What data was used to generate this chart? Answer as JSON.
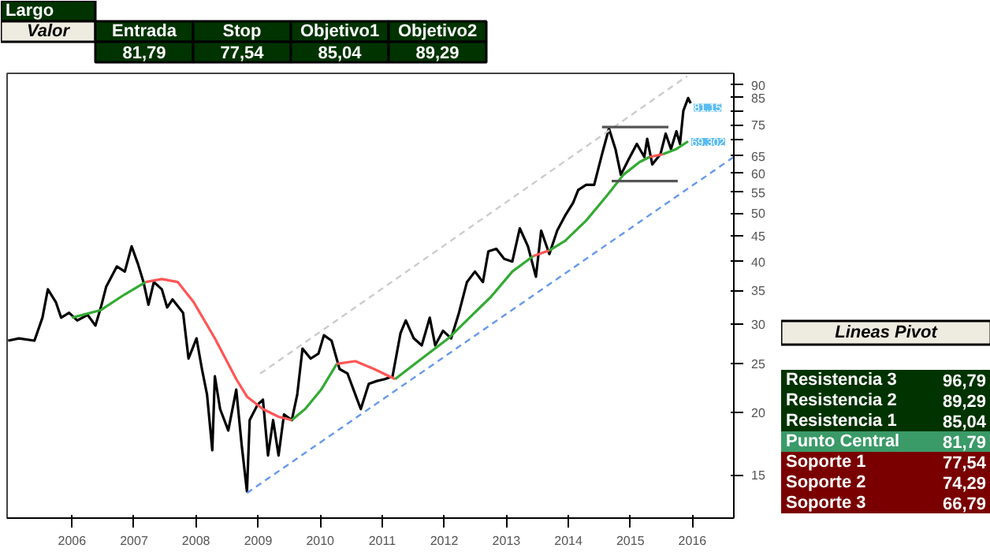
{
  "chart_data": [
    {
      "type": "other",
      "title": "Largo",
      "annotations": [
        "Valor"
      ],
      "categories": [
        "Entrada",
        "Stop",
        "Objetivo1",
        "Objetivo2"
      ],
      "value_labels": [
        "81,79",
        "77,54",
        "85,04",
        "89,29"
      ]
    },
    {
      "type": "line",
      "log": true,
      "grid": false,
      "marker": "none",
      "xlim": [
        "2004-12-15",
        "2016-09-01"
      ],
      "ylim": [
        12.3,
        95
      ],
      "xticks": [
        {
          "value": "2006-01-01",
          "label": "2006"
        },
        {
          "value": "2007-01-01",
          "label": "2007"
        },
        {
          "value": "2008-01-01",
          "label": "2008"
        },
        {
          "value": "2009-01-01",
          "label": "2009"
        },
        {
          "value": "2010-01-01",
          "label": "2010"
        },
        {
          "value": "2011-01-01",
          "label": "2011"
        },
        {
          "value": "2012-01-01",
          "label": "2012"
        },
        {
          "value": "2013-01-01",
          "label": "2013"
        },
        {
          "value": "2014-01-01",
          "label": "2014"
        },
        {
          "value": "2015-01-01",
          "label": "2015"
        },
        {
          "value": "2016-01-01",
          "label": "2016"
        }
      ],
      "yticks": [
        15,
        20,
        25,
        30,
        35,
        40,
        45,
        50,
        55,
        60,
        65,
        {
          "value": 70,
          "label": null
        },
        75,
        {
          "value": 80,
          "label": null
        },
        85,
        90
      ],
      "annotations": [
        {
          "text": "81.15",
          "x": "2015-12-22",
          "y": 81.15
        },
        {
          "text": "69.302",
          "x": "2015-12-07",
          "y": 69.302
        }
      ],
      "series": [
        {
          "color": "#000000",
          "x": [
            "2004-12-21",
            "2005-02-23",
            "2005-05-25",
            "2005-07-11",
            "2005-08-12",
            "2005-09-28",
            "2005-10-29",
            "2005-12-15",
            "2006-02-01",
            "2006-04-03",
            "2006-05-19",
            "2006-06-20",
            "2006-07-21",
            "2006-09-22",
            "2006-11-08",
            "2006-12-18",
            "2007-01-25",
            "2007-02-26",
            "2007-03-27",
            "2007-04-28",
            "2007-06-14",
            "2007-07-15",
            "2007-08-16",
            "2007-10-17",
            "2007-11-18",
            "2008-01-04",
            "2008-02-05",
            "2008-03-06",
            "2008-04-06",
            "2008-04-21",
            "2008-05-22",
            "2008-07-09",
            "2008-08-25",
            "2008-09-26",
            "2008-10-27",
            "2008-11-12",
            "2008-12-28",
            "2009-01-29",
            "2009-02-28",
            "2009-03-30",
            "2009-05-01",
            "2009-06-02",
            "2009-07-18",
            "2009-08-19",
            "2009-09-19",
            "2009-11-06",
            "2009-12-22",
            "2010-01-23",
            "2010-03-09",
            "2010-04-25",
            "2010-06-11",
            "2010-07-27",
            "2010-08-28",
            "2010-10-14",
            "2010-12-01",
            "2011-01-17",
            "2011-03-03",
            "2011-04-19",
            "2011-05-20",
            "2011-07-06",
            "2011-08-22",
            "2011-10-08",
            "2011-11-09",
            "2011-12-25",
            "2012-02-11",
            "2012-03-28",
            "2012-05-14",
            "2012-06-30",
            "2012-08-16",
            "2012-09-17",
            "2012-11-03",
            "2012-12-19",
            "2013-02-05",
            "2013-03-21",
            "2013-05-08",
            "2013-06-24",
            "2013-07-25",
            "2013-09-11",
            "2013-10-27",
            "2013-12-13",
            "2014-01-29",
            "2014-02-28",
            "2014-04-16",
            "2014-06-02",
            "2014-07-18",
            "2014-08-28",
            "2014-10-05",
            "2014-11-06",
            "2014-12-22",
            "2015-02-08",
            "2015-03-24",
            "2015-04-10",
            "2015-05-10",
            "2015-06-27",
            "2015-07-28",
            "2015-08-28",
            "2015-09-29",
            "2015-10-20",
            "2015-11-09",
            "2015-12-07",
            "2015-12-22"
          ],
          "values": [
            27.8,
            28.1,
            27.8,
            30.9,
            35.2,
            33.2,
            30.9,
            31.6,
            30.5,
            31.3,
            29.8,
            32.4,
            35.6,
            39.1,
            38.2,
            42.9,
            39.5,
            36.4,
            32.8,
            36.4,
            35.2,
            32.4,
            33.6,
            31.6,
            25.6,
            28.1,
            24.4,
            21.7,
            16.8,
            23.6,
            20.3,
            18.4,
            22.2,
            17.2,
            13.9,
            19.3,
            20.7,
            21.2,
            16.4,
            19.3,
            16.4,
            19.8,
            19.3,
            21.7,
            26.8,
            25.6,
            26.2,
            28.5,
            27.8,
            24.4,
            23.9,
            21.7,
            20.3,
            22.8,
            23.1,
            23.3,
            23.6,
            28.8,
            30.5,
            28.1,
            27.2,
            30.9,
            27.2,
            29.1,
            28.1,
            31.6,
            36.4,
            38.2,
            36.4,
            41.9,
            42.4,
            40.5,
            40.0,
            46.6,
            42.9,
            37.3,
            46.1,
            41.4,
            46.1,
            49.4,
            52.4,
            55.6,
            56.9,
            56.9,
            65.5,
            73.7,
            67.1,
            59.6,
            64.0,
            68.7,
            64.7,
            70.3,
            62.5,
            65.5,
            72.0,
            67.1,
            72.8,
            68.7,
            80.0,
            84.8,
            82.8
          ]
        },
        {
          "color": "#33aa33",
          "x": [
            "2006-01-01",
            "2006-06-20",
            "2006-11-08",
            "2007-03-11"
          ],
          "values": [
            30.9,
            32.0,
            34.4,
            36.4
          ]
        },
        {
          "color": "#ff5555",
          "x": [
            "2007-03-11",
            "2007-06-14",
            "2007-09-16",
            "2007-12-18",
            "2008-04-21",
            "2008-08-25",
            "2008-10-27",
            "2009-01-29",
            "2009-05-01",
            "2009-07-18"
          ],
          "values": [
            36.4,
            36.9,
            36.4,
            33.2,
            28.1,
            23.3,
            21.5,
            20.3,
            19.6,
            19.3
          ]
        },
        {
          "color": "#33aa33",
          "x": [
            "2009-07-18",
            "2009-10-04",
            "2010-01-07",
            "2010-04-09"
          ],
          "values": [
            19.3,
            20.3,
            22.2,
            25.0
          ]
        },
        {
          "color": "#ff5555",
          "x": [
            "2010-04-09",
            "2010-07-27",
            "2010-11-15",
            "2011-03-18"
          ],
          "values": [
            25.0,
            25.3,
            24.4,
            23.3
          ]
        },
        {
          "color": "#33aa33",
          "x": [
            "2011-03-18",
            "2011-08-22",
            "2012-01-26",
            "2012-05-29",
            "2012-10-02",
            "2013-02-05",
            "2013-06-08"
          ],
          "values": [
            23.3,
            25.6,
            28.1,
            30.9,
            34.0,
            38.2,
            41.0
          ]
        },
        {
          "color": "#ff5555",
          "x": [
            "2013-06-08",
            "2013-09-11"
          ],
          "values": [
            41.0,
            42.1
          ]
        },
        {
          "color": "#33aa33",
          "x": [
            "2013-09-11",
            "2013-12-13",
            "2014-04-16",
            "2014-08-19",
            "2014-11-21",
            "2015-02-24",
            "2015-04-25"
          ],
          "values": [
            42.1,
            44.0,
            48.3,
            54.3,
            59.6,
            63.2,
            64.7
          ]
        },
        {
          "color": "#ff5555",
          "x": [
            "2015-04-25",
            "2015-07-12"
          ],
          "values": [
            64.7,
            65.5
          ]
        },
        {
          "color": "#33aa33",
          "x": [
            "2015-07-12",
            "2015-09-29",
            "2015-12-07"
          ],
          "values": [
            65.5,
            67.1,
            69.5
          ]
        },
        {
          "color": "#cccccc",
          "line_style": "dashed",
          "x": [
            "2009-01-13",
            "2015-12-01"
          ],
          "values": [
            23.9,
            93.8
          ]
        },
        {
          "color": "#6699ee",
          "line_style": "dashed",
          "x": [
            "2008-10-27",
            "2016-09-01"
          ],
          "values": [
            13.8,
            64.7
          ]
        },
        {
          "color": "#555555",
          "x": [
            "2014-07-18",
            "2015-08-13"
          ],
          "values": [
            74.2,
            74.2
          ]
        },
        {
          "color": "#555555",
          "x": [
            "2014-09-13",
            "2015-10-07"
          ],
          "values": [
            57.9,
            57.9
          ]
        }
      ]
    },
    {
      "type": "other",
      "title": "Lineas Pivot",
      "categories": [
        "Resistencia 3",
        "Resistencia 2",
        "Resistencia 1",
        "Punto Central",
        "Soporte 1",
        "Soporte 2",
        "Soporte 3"
      ],
      "value_labels": [
        "96,79",
        "89,29",
        "85,04",
        "81,79",
        "77,54",
        "74,29",
        "66,79"
      ]
    }
  ]
}
